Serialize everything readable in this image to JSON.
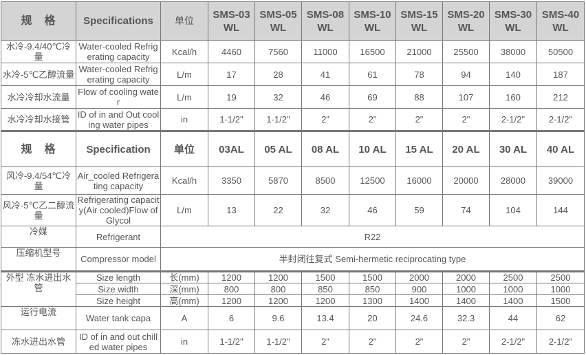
{
  "colors": {
    "header_bg": "#d4d4d4",
    "border": "#777777",
    "text": "#555555"
  },
  "water_header": {
    "cn": "规　格",
    "en": "Specifications",
    "unit": "单位",
    "models": [
      "SMS-03 WL",
      "SMS-05 WL",
      "SMS-08 WL",
      "SMS-10 WL",
      "SMS-15 WL",
      "SMS-20 WL",
      "SMS-30 WL",
      "SMS-40 WL"
    ]
  },
  "water_rows": [
    {
      "cn": "水冷-9.4/40℃冷量",
      "en": "Water-cooled Refrigerating capacity",
      "unit": "Kcal/h",
      "values": [
        "4460",
        "7560",
        "11000",
        "16500",
        "21000",
        "25500",
        "38000",
        "50500"
      ]
    },
    {
      "cn": "水冷-5℃乙醇流量",
      "en": "Water-cooled Refrigerating capacity",
      "unit": "L/m",
      "values": [
        "17",
        "28",
        "41",
        "61",
        "78",
        "94",
        "140",
        "187"
      ]
    },
    {
      "cn": "水冷冷却水流量",
      "en": "Flow of cooling water",
      "unit": "L/m",
      "values": [
        "19",
        "32",
        "46",
        "69",
        "88",
        "107",
        "160",
        "212"
      ]
    },
    {
      "cn": "水冷冷却水接管",
      "en": "ID of in and Out cooling water pipes",
      "unit": "in",
      "values": [
        "1-1/2\"",
        "1-1/2\"",
        "2\"",
        "2\"",
        "2\"",
        "2\"",
        "2-1/2\"",
        "2-1/2\""
      ]
    }
  ],
  "air_header": {
    "cn": "规　格",
    "en": "Specification",
    "unit": "单位",
    "models": [
      "03AL",
      "05 AL",
      "08 AL",
      "10 AL",
      "15 AL",
      "20 AL",
      "30 AL",
      "40 AL"
    ]
  },
  "air_rows": [
    {
      "cn": "风冷-9.4/54℃冷量",
      "en": "Air_cooled Refrigerating capacity",
      "unit": "Kcal/h",
      "values": [
        "3350",
        "5870",
        "8500",
        "12500",
        "16000",
        "20000",
        "28000",
        "39000"
      ]
    },
    {
      "cn": "风冷-5℃乙二醇流量",
      "en": "Refrigerating capacity(Air cooled)Flow of Glycol",
      "unit": "L/m",
      "values": [
        "13",
        "22",
        "32",
        "46",
        "59",
        "74",
        "104",
        "144"
      ]
    }
  ],
  "common_rows": [
    {
      "cn": "冷媒",
      "en": "Refrigerant",
      "value": "R22"
    },
    {
      "cn": "压缩机型号",
      "en": "Compressor model",
      "value": "半封闭往复式 Semi-hermetic reciprocating type"
    }
  ],
  "size_group": {
    "cn": "外型 冻水进出水管",
    "rows": [
      {
        "en": "Size length",
        "unit": "长(mm)",
        "values": [
          "1200",
          "1200",
          "1500",
          "1500",
          "2000",
          "2000",
          "2500",
          "2500"
        ]
      },
      {
        "en": "Size width",
        "unit": "深(mm)",
        "values": [
          "800",
          "800",
          "850",
          "850",
          "900",
          "1000",
          "1000",
          "1000"
        ]
      },
      {
        "en": "Size height",
        "unit": "高(mm)",
        "values": [
          "1200",
          "1200",
          "1200",
          "1300",
          "1400",
          "1400",
          "1400",
          "1500"
        ]
      }
    ]
  },
  "tail_rows": [
    {
      "cn": "运行电流",
      "en": "Water tank capa",
      "unit": "A",
      "values": [
        "6",
        "9.6",
        "13.4",
        "20",
        "24.6",
        "32.3",
        "44",
        "62"
      ],
      "top": true
    },
    {
      "cn": "冻水进出水管",
      "en": "ID of in and out chilled water pipes",
      "unit": "in",
      "values": [
        "1-1/2\"",
        "1-1/2\"",
        "2\"",
        "2\"",
        "2\"",
        "2\"",
        "2-1/2\"",
        "2-1/2\""
      ]
    }
  ]
}
